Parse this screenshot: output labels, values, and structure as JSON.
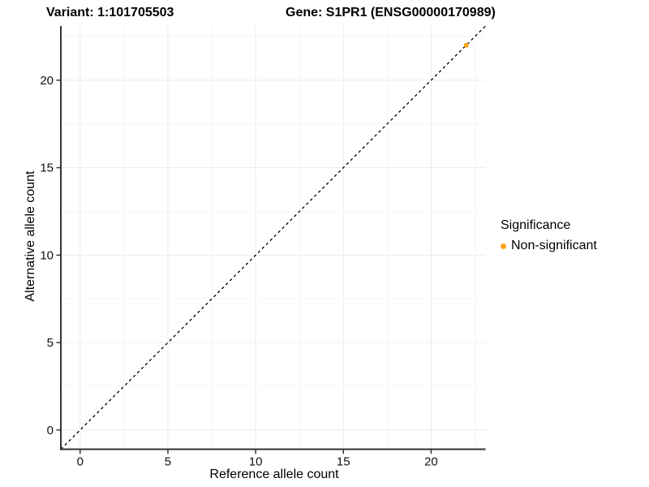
{
  "chart_data": {
    "type": "scatter",
    "title_left": "Variant: 1:101705503",
    "title_right": "Gene: S1PR1 (ENSG00000170989)",
    "xlabel": "Reference allele count",
    "ylabel": "Alternative allele count",
    "xlim": [
      -1.1,
      23.1
    ],
    "ylim": [
      -1.1,
      23.1
    ],
    "x_major_ticks": [
      0,
      5,
      10,
      15,
      20
    ],
    "x_minor_ticks": [
      2.5,
      7.5,
      12.5,
      17.5,
      22.5
    ],
    "y_major_ticks": [
      0,
      5,
      10,
      15,
      20
    ],
    "y_minor_ticks": [
      2.5,
      7.5,
      12.5,
      17.5,
      22.5
    ],
    "grid": "major+minor",
    "reference_line": {
      "type": "identity",
      "from": [
        -1.1,
        -1.1
      ],
      "to": [
        23.1,
        23.1
      ],
      "style": "dashed",
      "color": "#000000"
    },
    "series": [
      {
        "name": "Non-significant",
        "color": "#FFA319",
        "points": [
          {
            "x": 22,
            "y": 22
          }
        ]
      }
    ],
    "legend": {
      "title": "Significance",
      "position": "right",
      "items": [
        {
          "label": "Non-significant",
          "color": "#FFA319"
        }
      ]
    },
    "colors": {
      "grid_major": "#ebebeb",
      "grid_minor": "#f5f5f5",
      "axis": "#333333",
      "tick_label": "#111111"
    }
  }
}
